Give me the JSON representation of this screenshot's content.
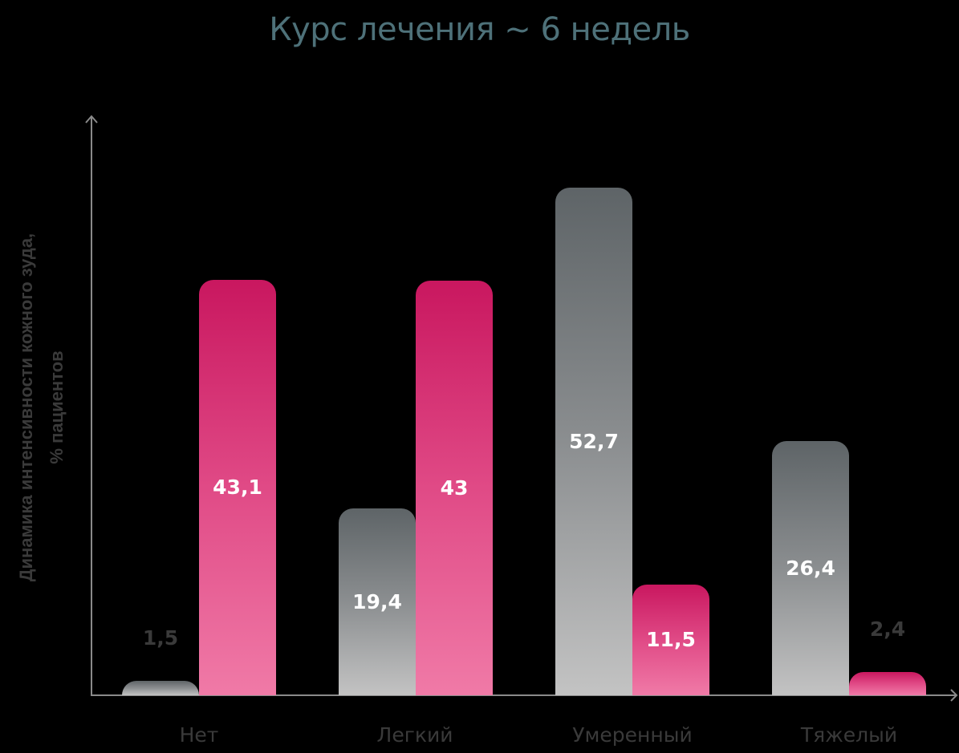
{
  "chart_data": {
    "type": "bar",
    "title": "Курс лечения ~ 6 недель",
    "xlabel": "",
    "ylabel": "Динамика интенсивности кожного зуда, % пациентов",
    "ylabel_lines": [
      "Динамика интенсивности кожного зуда,",
      "% пациентов"
    ],
    "categories": [
      "Нет",
      "Легкий",
      "Умеренный",
      "Тяжелый"
    ],
    "series": [
      {
        "name": "series-gray",
        "color": "#6b7073",
        "values": [
          1.5,
          19.4,
          52.7,
          26.4
        ],
        "labels": [
          "1,5",
          "19,4",
          "52,7",
          "26,4"
        ]
      },
      {
        "name": "series-pink",
        "color": "#d6246c",
        "values": [
          43.1,
          43,
          11.5,
          2.4
        ],
        "labels": [
          "43,1",
          "43",
          "11,5",
          "2,4"
        ]
      }
    ],
    "ylim": [
      0,
      60
    ],
    "grid": false,
    "legend": "none"
  }
}
